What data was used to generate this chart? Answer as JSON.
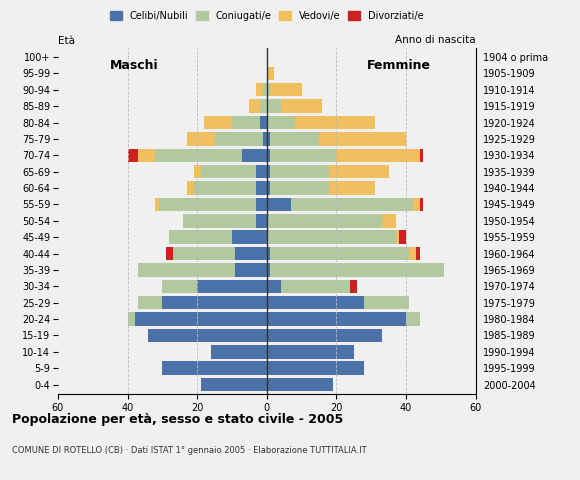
{
  "age_groups": [
    "0-4",
    "5-9",
    "10-14",
    "15-19",
    "20-24",
    "25-29",
    "30-34",
    "35-39",
    "40-44",
    "45-49",
    "50-54",
    "55-59",
    "60-64",
    "65-69",
    "70-74",
    "75-79",
    "80-84",
    "85-89",
    "90-94",
    "95-99",
    "100+"
  ],
  "birth_years": [
    "2000-2004",
    "1995-1999",
    "1990-1994",
    "1985-1989",
    "1980-1984",
    "1975-1979",
    "1970-1974",
    "1965-1969",
    "1960-1964",
    "1955-1959",
    "1950-1954",
    "1945-1949",
    "1940-1944",
    "1935-1939",
    "1930-1934",
    "1925-1929",
    "1920-1924",
    "1915-1919",
    "1910-1914",
    "1905-1909",
    "1904 o prima"
  ],
  "males": {
    "celibe": [
      19,
      30,
      16,
      34,
      38,
      30,
      20,
      9,
      9,
      10,
      3,
      3,
      3,
      3,
      7,
      1,
      2,
      0,
      0,
      0,
      0
    ],
    "coniugato": [
      0,
      0,
      0,
      0,
      2,
      7,
      10,
      28,
      18,
      18,
      21,
      28,
      18,
      16,
      25,
      14,
      8,
      2,
      1,
      0,
      0
    ],
    "vedovo": [
      0,
      0,
      0,
      0,
      0,
      0,
      0,
      0,
      0,
      0,
      0,
      1,
      2,
      2,
      5,
      8,
      8,
      3,
      2,
      0,
      0
    ],
    "divorziato": [
      0,
      0,
      0,
      0,
      0,
      0,
      0,
      0,
      2,
      0,
      0,
      0,
      0,
      0,
      3,
      0,
      0,
      0,
      0,
      0,
      0
    ]
  },
  "females": {
    "celibe": [
      19,
      28,
      25,
      33,
      40,
      28,
      4,
      1,
      1,
      0,
      0,
      7,
      1,
      1,
      1,
      1,
      0,
      0,
      0,
      0,
      0
    ],
    "coniugato": [
      0,
      0,
      0,
      0,
      4,
      13,
      20,
      50,
      40,
      37,
      33,
      35,
      17,
      17,
      19,
      14,
      8,
      4,
      1,
      0,
      0
    ],
    "vedovo": [
      0,
      0,
      0,
      0,
      0,
      0,
      0,
      0,
      2,
      1,
      4,
      2,
      13,
      17,
      24,
      25,
      23,
      12,
      9,
      2,
      0
    ],
    "divorziato": [
      0,
      0,
      0,
      0,
      0,
      0,
      2,
      0,
      1,
      2,
      0,
      1,
      0,
      0,
      1,
      0,
      0,
      0,
      0,
      0,
      0
    ]
  },
  "colors": {
    "celibe": "#4a72a8",
    "coniugato": "#b2c9a0",
    "vedovo": "#f0c060",
    "divorziato": "#cc2222"
  },
  "legend_labels": [
    "Celibi/Nubili",
    "Coniugati/e",
    "Vedovi/e",
    "Divorziati/e"
  ],
  "title": "Popolazione per età, sesso e stato civile - 2005",
  "subtitle": "COMUNE DI ROTELLO (CB) · Dati ISTAT 1° gennaio 2005 · Elaborazione TUTTITALIA.IT",
  "label_eta": "Età",
  "label_maschi": "Maschi",
  "label_femmine": "Femmine",
  "label_anno": "Anno di nascita",
  "xlim": 60,
  "bg_color": "#f0f0f0"
}
